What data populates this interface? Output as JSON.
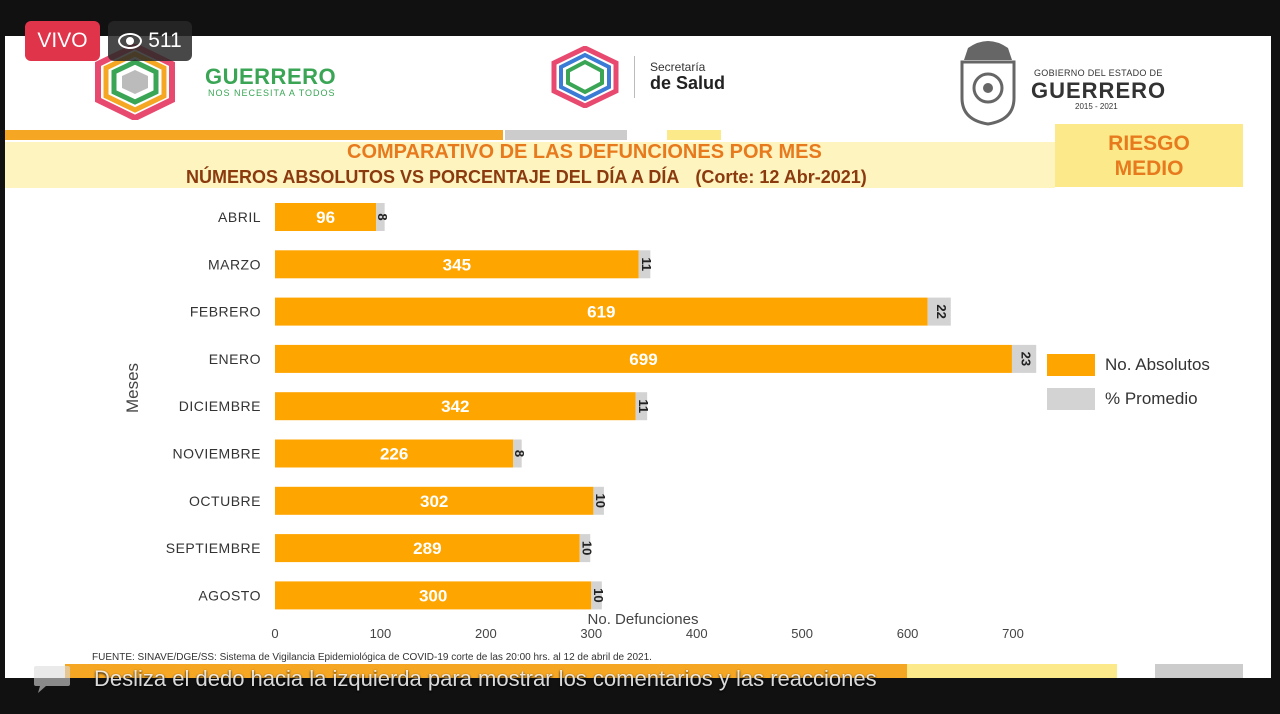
{
  "stream": {
    "live_label": "VIVO",
    "viewer_count": "511",
    "comment_hint": "Desliza el dedo hacia la izquierda para mostrar los comentarios y las reacciones"
  },
  "header": {
    "guerrero_logo": "GUERRERO",
    "guerrero_slogan": "NOS NECESITA A TODOS",
    "secretaria_line1": "Secretaría",
    "secretaria_line2": "de Salud",
    "gobierno_line1": "GOBIERNO DEL ESTADO DE",
    "gobierno_line2": "GUERRERO",
    "gobierno_years": "2015 - 2021"
  },
  "risk": {
    "line1": "RIESGO",
    "line2": "MEDIO"
  },
  "colors": {
    "absolutos": "#ffa500",
    "promedio": "#d3d3d3",
    "title": "#e87a1e",
    "subtitle": "#8b3a0e",
    "risk_bg": "#fbe98a"
  },
  "chart_data": {
    "type": "bar",
    "orientation": "horizontal",
    "stacked": true,
    "title": "COMPARATIVO DE LAS DEFUNCIONES POR MES",
    "subtitle": "NÚMEROS ABSOLUTOS VS PORCENTAJE DEL DÍA A DÍA",
    "subtitle_note": "(Corte: 12 Abr-2021)",
    "xlabel": "No. Defunciones",
    "ylabel": "Meses",
    "xlim": [
      0,
      700
    ],
    "xticks": [
      0,
      100,
      200,
      300,
      400,
      500,
      600,
      700
    ],
    "categories": [
      "ABRIL",
      "MARZO",
      "FEBRERO",
      "ENERO",
      "DICIEMBRE",
      "NOVIEMBRE",
      "OCTUBRE",
      "SEPTIEMBRE",
      "AGOSTO"
    ],
    "series": [
      {
        "name": "No. Absolutos",
        "values": [
          96,
          345,
          619,
          699,
          342,
          226,
          302,
          289,
          300
        ]
      },
      {
        "name": "% Promedio",
        "values": [
          8,
          11,
          22,
          23,
          11,
          8,
          10,
          10,
          10
        ]
      }
    ],
    "legend_position": "right",
    "grid": false
  },
  "footer": {
    "source": "FUENTE: SINAVE/DGE/SS: Sistema de Vigilancia Epidemiológica de COVID-19 corte de las 20:00 hrs. al 12 de  abril de 2021."
  }
}
